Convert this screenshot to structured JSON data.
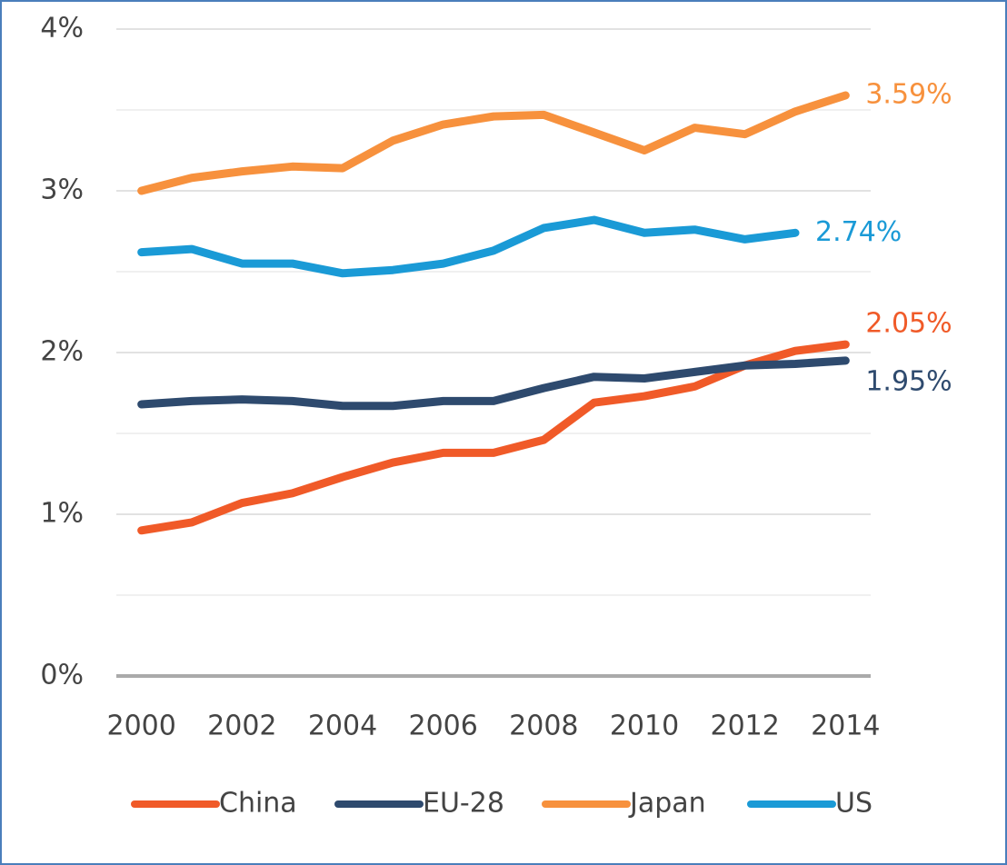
{
  "chart_data": {
    "type": "line",
    "x": [
      2000,
      2001,
      2002,
      2003,
      2004,
      2005,
      2006,
      2007,
      2008,
      2009,
      2010,
      2011,
      2012,
      2013,
      2014
    ],
    "xlim": [
      1999.5,
      2014.5
    ],
    "xticks": [
      2000,
      2002,
      2004,
      2006,
      2008,
      2010,
      2012,
      2014
    ],
    "ylim": [
      0,
      4
    ],
    "yticks": [
      {
        "value": 0,
        "label": "0%"
      },
      {
        "value": 1,
        "label": "1%"
      },
      {
        "value": 2,
        "label": "2%"
      },
      {
        "value": 3,
        "label": "3%"
      },
      {
        "value": 4,
        "label": "4%"
      }
    ],
    "minor_grid": [
      0.5,
      1.5,
      2.5,
      3.5
    ],
    "grid": true,
    "legend": "bottom",
    "series": [
      {
        "name": "China",
        "color": "#f05a28",
        "values": [
          0.9,
          0.95,
          1.07,
          1.13,
          1.23,
          1.32,
          1.38,
          1.38,
          1.46,
          1.69,
          1.73,
          1.79,
          1.92,
          2.01,
          2.05
        ],
        "end_label": "2.05%"
      },
      {
        "name": "EU-28",
        "color": "#2e4a6e",
        "values": [
          1.68,
          1.7,
          1.71,
          1.7,
          1.67,
          1.67,
          1.7,
          1.7,
          1.78,
          1.85,
          1.84,
          1.88,
          1.92,
          1.93,
          1.95
        ],
        "end_label": "1.95%"
      },
      {
        "name": "Japan",
        "color": "#f7913d",
        "values": [
          3.0,
          3.08,
          3.12,
          3.15,
          3.14,
          3.31,
          3.41,
          3.46,
          3.47,
          3.36,
          3.25,
          3.39,
          3.35,
          3.49,
          3.59
        ],
        "end_label": "3.59%"
      },
      {
        "name": "US",
        "color": "#1a9ad6",
        "values": [
          2.62,
          2.64,
          2.55,
          2.55,
          2.49,
          2.51,
          2.55,
          2.63,
          2.77,
          2.82,
          2.74,
          2.76,
          2.7,
          2.74,
          null
        ],
        "end_label": "2.74%"
      }
    ]
  }
}
